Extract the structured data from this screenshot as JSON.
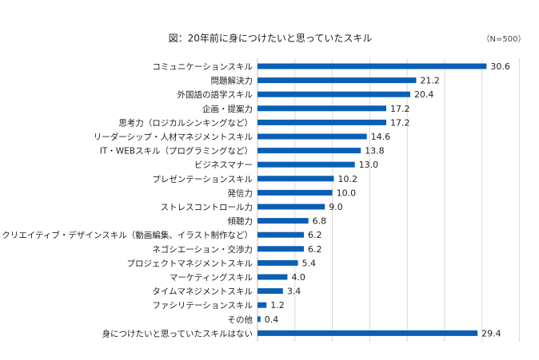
{
  "chart_data": {
    "type": "bar",
    "orientation": "horizontal",
    "title": "図：20年前に身につけたいと思っていたスキル",
    "note": "（N=500）",
    "categories": [
      "コミュニケーションスキル",
      "問題解決力",
      "外国語の語学スキル",
      "企画・提案力",
      "思考力（ロジカルシンキングなど）",
      "リーダーシップ・人材マネジメントスキル",
      "IT・WEBスキル（プログラミングなど）",
      "ビジネスマナー",
      "プレゼンテーションスキル",
      "発信力",
      "ストレスコントロール力",
      "傾聴力",
      "クリエイティブ・デザインスキル（動画編集、イラスト制作など）",
      "ネゴシエーション・交渉力",
      "プロジェクトマネジメントスキル",
      "マーケティングスキル",
      "タイムマネジメントスキル",
      "ファシリテーションスキル",
      "その他",
      "身につけたいと思っていたスキルはない"
    ],
    "values": [
      30.6,
      21.2,
      20.4,
      17.2,
      17.2,
      14.6,
      13.8,
      13.0,
      10.2,
      10.0,
      9.0,
      6.8,
      6.2,
      6.2,
      5.4,
      4.0,
      3.4,
      1.2,
      0.4,
      29.4
    ],
    "value_labels": [
      "30.6",
      "21.2",
      "20.4",
      "17.2",
      "17.2",
      "14.6",
      "13.8",
      "13.0",
      "10.2",
      "10.0",
      "9.0",
      "6.8",
      "6.2",
      "6.2",
      "5.4",
      "4.0",
      "3.4",
      "1.2",
      "0.4",
      "29.4"
    ],
    "xlim": [
      0,
      35
    ],
    "grid": true,
    "bar_color": "#0a5fb4",
    "grid_color": "#d9d9d9"
  }
}
